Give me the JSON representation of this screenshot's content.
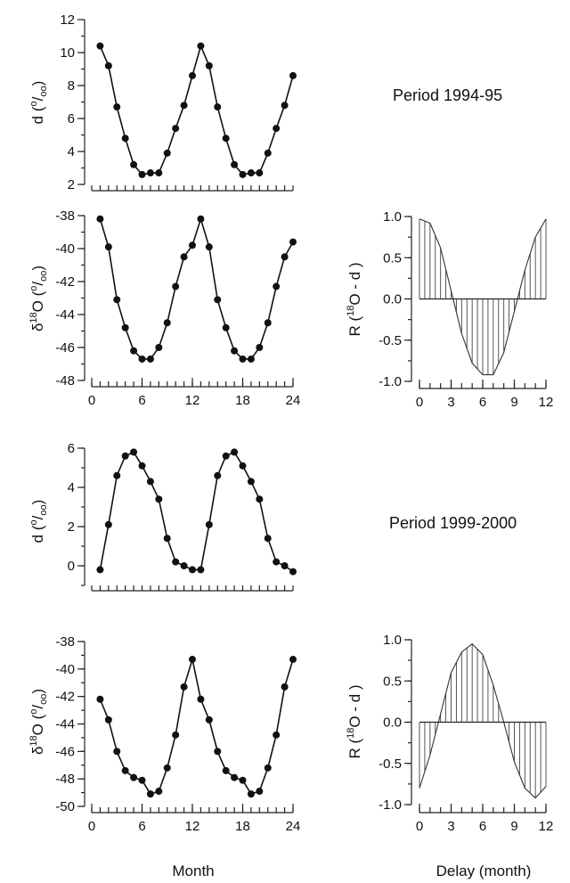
{
  "labels": {
    "period_1": "Period 1994-95",
    "period_2": "Period 1999-2000",
    "month_axis": "Month",
    "delay_axis": "Delay (month)",
    "d_axis": {
      "main": "d (",
      "sup": "o",
      "sub": "/",
      "sub2": "oo",
      "close": ")"
    },
    "o18_axis": {
      "delta": "δ",
      "sup": "18",
      "main": "O (",
      "sup2": "o",
      "sub": "/",
      "sub2": "oo",
      "close": ")"
    },
    "r_axis": {
      "main": "R (",
      "sup": "18",
      "rest": "O - d )"
    }
  },
  "chart_data": [
    {
      "type": "line",
      "panel": "d-1994-95",
      "x": [
        1,
        2,
        3,
        4,
        5,
        6,
        7,
        8,
        9,
        10,
        11,
        12,
        13,
        14,
        15,
        16,
        17,
        18,
        19,
        20,
        21,
        22,
        23,
        24
      ],
      "y": [
        10.4,
        9.2,
        6.7,
        4.8,
        3.2,
        2.6,
        2.7,
        2.7,
        3.9,
        5.4,
        6.8,
        8.6,
        10.4,
        9.2,
        6.7,
        4.8,
        3.2,
        2.6,
        2.7,
        2.7,
        3.9,
        5.4,
        6.8,
        8.6
      ],
      "ylim": [
        2,
        12
      ],
      "yticks": [
        2,
        4,
        6,
        8,
        10,
        12
      ],
      "xlim": [
        0,
        24
      ],
      "xticks": [],
      "markers": true
    },
    {
      "type": "line",
      "panel": "o18-1994-95",
      "x": [
        1,
        2,
        3,
        4,
        5,
        6,
        7,
        8,
        9,
        10,
        11,
        12,
        13,
        14,
        15,
        16,
        17,
        18,
        19,
        20,
        21,
        22,
        23,
        24
      ],
      "y": [
        -38.2,
        -39.9,
        -43.1,
        -44.8,
        -46.2,
        -46.7,
        -46.7,
        -46.0,
        -44.5,
        -42.3,
        -40.5,
        -39.8,
        -38.2,
        -39.9,
        -43.1,
        -44.8,
        -46.2,
        -46.7,
        -46.7,
        -46.0,
        -44.5,
        -42.3,
        -40.5,
        -39.6
      ],
      "ylim": [
        -48,
        -38
      ],
      "yticks": [
        -48,
        -46,
        -44,
        -42,
        -40,
        -38
      ],
      "xlim": [
        0,
        24
      ],
      "xticks": [
        0,
        6,
        12,
        18,
        24
      ],
      "markers": true
    },
    {
      "type": "line",
      "panel": "r-1994-95",
      "x": [
        0,
        1,
        2,
        3,
        4,
        5,
        6,
        7,
        8,
        9,
        10,
        11,
        12
      ],
      "y": [
        0.97,
        0.92,
        0.62,
        0.1,
        -0.42,
        -0.78,
        -0.92,
        -0.92,
        -0.65,
        -0.15,
        0.35,
        0.75,
        0.97
      ],
      "ylim": [
        -1.0,
        1.0
      ],
      "yticks": [
        -1.0,
        -0.5,
        0.0,
        0.5,
        1.0
      ],
      "xlim": [
        0,
        12
      ],
      "xticks": [
        0,
        3,
        6,
        9,
        12
      ],
      "hatched": true
    },
    {
      "type": "line",
      "panel": "d-1999-2000",
      "x": [
        1,
        2,
        3,
        4,
        5,
        6,
        7,
        8,
        9,
        10,
        11,
        12,
        13,
        14,
        15,
        16,
        17,
        18,
        19,
        20,
        21,
        22,
        23,
        24
      ],
      "y": [
        -0.2,
        2.1,
        4.6,
        5.6,
        5.8,
        5.1,
        4.3,
        3.4,
        1.4,
        0.2,
        0.0,
        -0.2,
        -0.2,
        2.1,
        4.6,
        5.6,
        5.8,
        5.1,
        4.3,
        3.4,
        1.4,
        0.2,
        0.0,
        -0.3
      ],
      "ylim": [
        -1,
        6
      ],
      "yticks": [
        0,
        2,
        4,
        6
      ],
      "xlim": [
        0,
        24
      ],
      "xticks": [],
      "markers": true
    },
    {
      "type": "line",
      "panel": "o18-1999-2000",
      "x": [
        1,
        2,
        3,
        4,
        5,
        6,
        7,
        8,
        9,
        10,
        11,
        12,
        13,
        14,
        15,
        16,
        17,
        18,
        19,
        20,
        21,
        22,
        23,
        24
      ],
      "y": [
        -42.2,
        -43.7,
        -46.0,
        -47.4,
        -47.9,
        -48.1,
        -49.1,
        -48.9,
        -47.2,
        -44.8,
        -41.3,
        -39.3,
        -42.2,
        -43.7,
        -46.0,
        -47.4,
        -47.9,
        -48.1,
        -49.1,
        -48.9,
        -47.2,
        -44.8,
        -41.3,
        -39.3
      ],
      "ylim": [
        -50,
        -38
      ],
      "yticks": [
        -50,
        -48,
        -46,
        -44,
        -42,
        -40,
        -38
      ],
      "xlim": [
        0,
        24
      ],
      "xticks": [
        0,
        6,
        12,
        18,
        24
      ],
      "markers": true
    },
    {
      "type": "line",
      "panel": "r-1999-2000",
      "x": [
        0,
        1,
        2,
        3,
        4,
        5,
        6,
        7,
        8,
        9,
        10,
        11,
        12
      ],
      "y": [
        -0.8,
        -0.4,
        0.1,
        0.6,
        0.85,
        0.95,
        0.82,
        0.45,
        0.0,
        -0.48,
        -0.8,
        -0.92,
        -0.78
      ],
      "ylim": [
        -1.0,
        1.0
      ],
      "yticks": [
        -1.0,
        -0.5,
        0.0,
        0.5,
        1.0
      ],
      "xlim": [
        0,
        12
      ],
      "xticks": [
        0,
        3,
        6,
        9,
        12
      ],
      "hatched": true
    }
  ]
}
